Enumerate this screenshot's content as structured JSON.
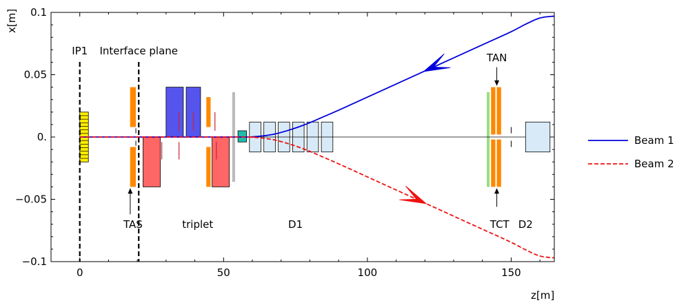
{
  "chart_data": {
    "type": "line",
    "xlabel": "z[m]",
    "ylabel": "x[m]",
    "xlim": [
      -10,
      165
    ],
    "ylim": [
      -0.1,
      0.1
    ],
    "xticks": [
      0,
      50,
      100,
      150
    ],
    "xtick_labels": [
      "0",
      "50",
      "100",
      "150"
    ],
    "yticks": [
      -0.1,
      -0.05,
      0.0,
      0.05,
      0.1
    ],
    "ytick_labels": [
      "−0.1",
      "−0.05",
      "0.",
      "0.05",
      "0.1"
    ],
    "legend_position": "right",
    "series": [
      {
        "name": "Beam 1",
        "color": "#0000dd",
        "style": "solid",
        "x": [
          0,
          55,
          60,
          64,
          68,
          72,
          76,
          80,
          84,
          90,
          100,
          110,
          120,
          130,
          140,
          150,
          155,
          160,
          165
        ],
        "y": [
          0,
          0,
          0.0002,
          0.001,
          0.0025,
          0.005,
          0.008,
          0.0115,
          0.0155,
          0.0215,
          0.032,
          0.0425,
          0.053,
          0.0635,
          0.074,
          0.0845,
          0.0905,
          0.0955,
          0.097
        ]
      },
      {
        "name": "Beam 2",
        "color": "#ee1111",
        "style": "dashed",
        "x": [
          0,
          55,
          60,
          64,
          68,
          72,
          76,
          80,
          84,
          90,
          100,
          110,
          120,
          130,
          140,
          150,
          155,
          160,
          165
        ],
        "y": [
          0,
          0,
          -0.0002,
          -0.001,
          -0.0025,
          -0.005,
          -0.008,
          -0.0115,
          -0.0155,
          -0.0215,
          -0.032,
          -0.0425,
          -0.053,
          -0.0635,
          -0.074,
          -0.0845,
          -0.0905,
          -0.0955,
          -0.097
        ]
      }
    ],
    "markers": [
      {
        "label": "IP1",
        "z": 0
      },
      {
        "label": "Interface plane",
        "z": 20.5
      }
    ],
    "annotations": [
      {
        "label": "TAS",
        "z": 18.5,
        "x": -0.062
      },
      {
        "label": "triplet",
        "z": 41,
        "x": -0.062
      },
      {
        "label": "D1",
        "z": 75,
        "x": -0.062
      },
      {
        "label": "TCT",
        "z": 146,
        "x": -0.062
      },
      {
        "label": "D2",
        "z": 155,
        "x": -0.062
      },
      {
        "label": "TAN",
        "z": 145,
        "x": 0.062
      }
    ],
    "elements": [
      {
        "kind": "detector",
        "color": "#ffee00",
        "z0": 0,
        "z1": 3,
        "x0": -0.02,
        "x1": 0.02
      },
      {
        "kind": "TAS",
        "color": "#ff8800",
        "z0": 17.5,
        "z1": 19.5,
        "x0": 0.008,
        "x1": 0.04
      },
      {
        "kind": "TAS",
        "color": "#ff8800",
        "z0": 17.5,
        "z1": 19.5,
        "x0": -0.04,
        "x1": -0.008
      },
      {
        "kind": "quadrupole-low",
        "color": "#ff6666",
        "z0": 22,
        "z1": 28,
        "x0": -0.04,
        "x1": 0
      },
      {
        "kind": "quadrupole-high",
        "color": "#5555ee",
        "z0": 30,
        "z1": 36,
        "x0": 0,
        "x1": 0.04
      },
      {
        "kind": "quadrupole-high",
        "color": "#5555ee",
        "z0": 37,
        "z1": 42,
        "x0": 0,
        "x1": 0.04
      },
      {
        "kind": "corrector",
        "color": "#ff8800",
        "z0": 44,
        "z1": 45.5,
        "x0": 0.008,
        "x1": 0.032
      },
      {
        "kind": "corrector",
        "color": "#ff8800",
        "z0": 44,
        "z1": 45.5,
        "x0": -0.04,
        "x1": -0.008
      },
      {
        "kind": "quadrupole-low",
        "color": "#ff6666",
        "z0": 46,
        "z1": 52,
        "x0": -0.04,
        "x1": 0
      },
      {
        "kind": "absorber",
        "color": "#bbbbbb",
        "z0": 53,
        "z1": 54,
        "x0": -0.036,
        "x1": 0.036
      },
      {
        "kind": "corrector-box",
        "color": "#22bbaa",
        "z0": 55,
        "z1": 58,
        "x0": -0.004,
        "x1": 0.005
      },
      {
        "kind": "dipole",
        "color": "#d8eaf8",
        "z0": 59,
        "z1": 63,
        "x0": -0.012,
        "x1": 0.012
      },
      {
        "kind": "dipole",
        "color": "#d8eaf8",
        "z0": 64,
        "z1": 68,
        "x0": -0.012,
        "x1": 0.012
      },
      {
        "kind": "dipole",
        "color": "#d8eaf8",
        "z0": 69,
        "z1": 73,
        "x0": -0.012,
        "x1": 0.012
      },
      {
        "kind": "dipole",
        "color": "#d8eaf8",
        "z0": 74,
        "z1": 78,
        "x0": -0.012,
        "x1": 0.012
      },
      {
        "kind": "dipole",
        "color": "#d8eaf8",
        "z0": 79,
        "z1": 83,
        "x0": -0.012,
        "x1": 0.012
      },
      {
        "kind": "dipole",
        "color": "#d8eaf8",
        "z0": 84,
        "z1": 88,
        "x0": -0.012,
        "x1": 0.012
      },
      {
        "kind": "TAN",
        "color": "#99dd88",
        "z0": 141.5,
        "z1": 142.5,
        "x0": -0.04,
        "x1": 0.036
      },
      {
        "kind": "TAN",
        "color": "#ff8800",
        "z0": 143,
        "z1": 144.5,
        "x0": 0.002,
        "x1": 0.04
      },
      {
        "kind": "TAN",
        "color": "#ff8800",
        "z0": 145,
        "z1": 146.5,
        "x0": 0.002,
        "x1": 0.04
      },
      {
        "kind": "TAN",
        "color": "#ff8800",
        "z0": 143,
        "z1": 144.5,
        "x0": -0.04,
        "x1": -0.002
      },
      {
        "kind": "TAN",
        "color": "#ff8800",
        "z0": 145,
        "z1": 146.5,
        "x0": -0.04,
        "x1": -0.002
      },
      {
        "kind": "D2",
        "color": "#d8eaf8",
        "z0": 155,
        "z1": 163.5,
        "x0": -0.012,
        "x1": 0.012
      }
    ]
  }
}
